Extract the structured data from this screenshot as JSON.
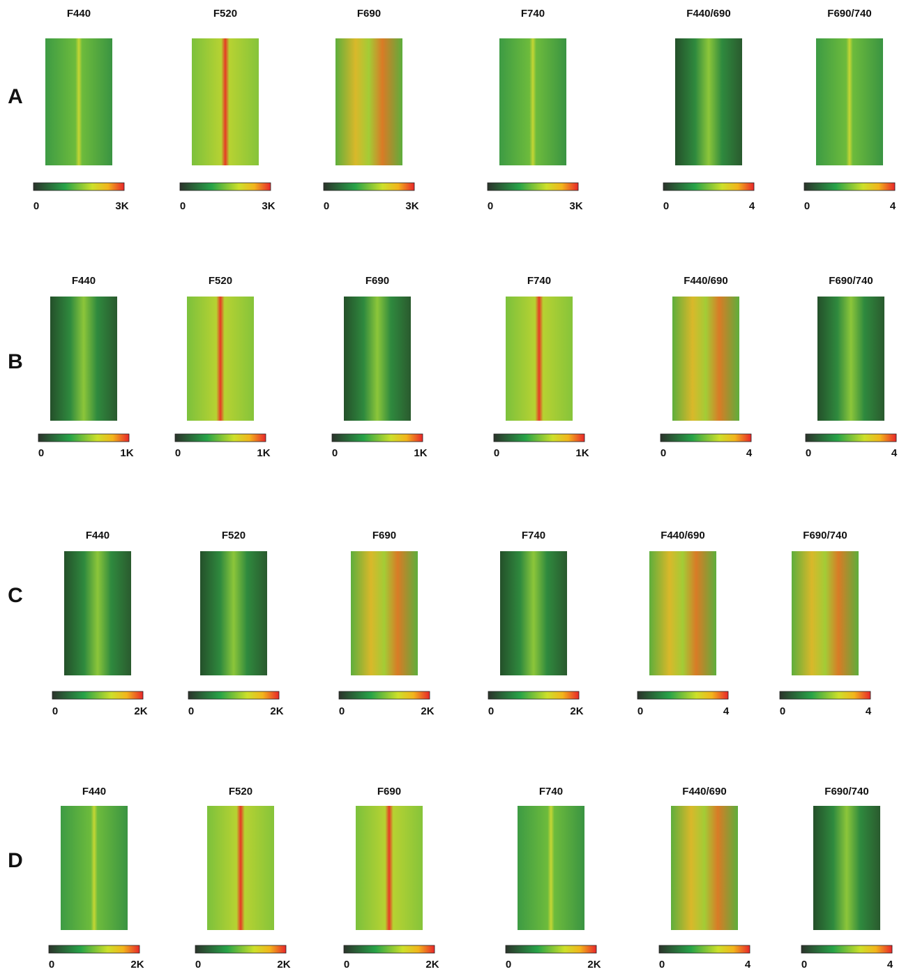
{
  "rows": [
    {
      "label": "A",
      "panels": [
        {
          "title": "F440",
          "min": "0",
          "max": "3K"
        },
        {
          "title": "F520",
          "min": "0",
          "max": "3K"
        },
        {
          "title": "F690",
          "min": "0",
          "max": "3K"
        },
        {
          "title": "F740",
          "min": "0",
          "max": "3K"
        },
        {
          "title": "F440/690",
          "min": "0",
          "max": "4"
        },
        {
          "title": "F690/740",
          "min": "0",
          "max": "4"
        }
      ]
    },
    {
      "label": "B",
      "panels": [
        {
          "title": "F440",
          "min": "0",
          "max": "1K"
        },
        {
          "title": "F520",
          "min": "0",
          "max": "1K"
        },
        {
          "title": "F690",
          "min": "0",
          "max": "1K"
        },
        {
          "title": "F740",
          "min": "0",
          "max": "1K"
        },
        {
          "title": "F440/690",
          "min": "0",
          "max": "4"
        },
        {
          "title": "F690/740",
          "min": "0",
          "max": "4"
        }
      ]
    },
    {
      "label": "C",
      "panels": [
        {
          "title": "F440",
          "min": "0",
          "max": "2K"
        },
        {
          "title": "F520",
          "min": "0",
          "max": "2K"
        },
        {
          "title": "F690",
          "min": "0",
          "max": "2K"
        },
        {
          "title": "F740",
          "min": "0",
          "max": "2K"
        },
        {
          "title": "F440/690",
          "min": "0",
          "max": "4"
        },
        {
          "title": "F690/740",
          "min": "0",
          "max": "4"
        }
      ]
    },
    {
      "label": "D",
      "panels": [
        {
          "title": "F440",
          "min": "0",
          "max": "2K"
        },
        {
          "title": "F520",
          "min": "0",
          "max": "2K"
        },
        {
          "title": "F690",
          "min": "0",
          "max": "2K"
        },
        {
          "title": "F740",
          "min": "0",
          "max": "2K"
        },
        {
          "title": "F440/690",
          "min": "0",
          "max": "4"
        },
        {
          "title": "F690/740",
          "min": "0",
          "max": "4"
        }
      ]
    }
  ]
}
